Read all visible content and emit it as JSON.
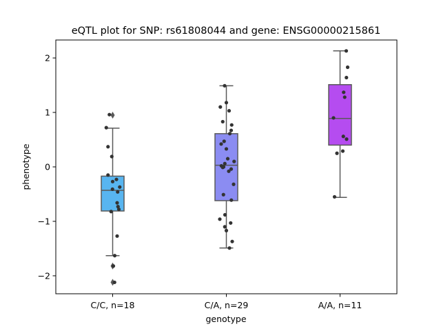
{
  "chart_data": {
    "type": "box",
    "title": "eQTL plot for SNP: rs61808044 and gene: ENSG00000215861",
    "xlabel": "genotype",
    "ylabel": "phenotype",
    "ylim": [
      -2.33,
      2.33
    ],
    "yticks": [
      -2,
      -1,
      0,
      1,
      2
    ],
    "ytick_labels": [
      "−2",
      "−1",
      "0",
      "1",
      "2"
    ],
    "grid": false,
    "categories": [
      "C/C, n=18",
      "C/A, n=29",
      "A/A, n=11"
    ],
    "box_colors": [
      "#58b5f0",
      "#8b8cf2",
      "#b54cf0"
    ],
    "point_color": "#333333",
    "boxes": [
      {
        "category": "C/C, n=18",
        "q1": -0.81,
        "median": -0.43,
        "q3": -0.17,
        "whisker_low": -1.63,
        "whisker_high": 0.71,
        "outliers": [
          0.95,
          -1.82,
          -2.12
        ]
      },
      {
        "category": "C/A, n=29",
        "q1": -0.62,
        "median": 0.03,
        "q3": 0.61,
        "whisker_low": -1.49,
        "whisker_high": 1.49,
        "outliers": []
      },
      {
        "category": "A/A, n=11",
        "q1": 0.4,
        "median": 0.89,
        "q3": 1.51,
        "whisker_low": -0.56,
        "whisker_high": 2.13,
        "outliers": []
      }
    ],
    "points": [
      [
        {
          "j": -0.19,
          "y": 0.96
        },
        {
          "j": -0.37,
          "y": 0.72
        },
        {
          "j": -0.27,
          "y": 0.37
        },
        {
          "j": -0.05,
          "y": 0.19
        },
        {
          "j": -0.27,
          "y": -0.15
        },
        {
          "j": 0.22,
          "y": -0.23
        },
        {
          "j": 0.0,
          "y": -0.27
        },
        {
          "j": 0.41,
          "y": -0.37
        },
        {
          "j": -0.01,
          "y": -0.41
        },
        {
          "j": 0.29,
          "y": -0.46
        },
        {
          "j": 0.26,
          "y": -0.66
        },
        {
          "j": 0.31,
          "y": -0.73
        },
        {
          "j": 0.36,
          "y": -0.78
        },
        {
          "j": -0.09,
          "y": -0.82
        },
        {
          "j": 0.26,
          "y": -1.27
        },
        {
          "j": 0.12,
          "y": -1.63
        },
        {
          "j": 0.04,
          "y": -1.82
        },
        {
          "j": 0.11,
          "y": -2.12
        }
      ],
      [
        {
          "j": -0.1,
          "y": 1.49
        },
        {
          "j": -0.35,
          "y": 1.1
        },
        {
          "j": 0.0,
          "y": 1.18
        },
        {
          "j": 0.16,
          "y": 1.03
        },
        {
          "j": -0.21,
          "y": 0.83
        },
        {
          "j": 0.31,
          "y": 0.77
        },
        {
          "j": 0.28,
          "y": 0.67
        },
        {
          "j": 0.2,
          "y": 0.61
        },
        {
          "j": -0.13,
          "y": 0.47
        },
        {
          "j": -0.3,
          "y": 0.42
        },
        {
          "j": 0.0,
          "y": 0.33
        },
        {
          "j": 0.08,
          "y": 0.15
        },
        {
          "j": 0.45,
          "y": 0.1
        },
        {
          "j": -0.09,
          "y": 0.06
        },
        {
          "j": -0.29,
          "y": 0.02
        },
        {
          "j": -0.16,
          "y": 0.0
        },
        {
          "j": -0.21,
          "y": -0.01
        },
        {
          "j": 0.28,
          "y": -0.04
        },
        {
          "j": 0.14,
          "y": -0.08
        },
        {
          "j": 0.42,
          "y": -0.32
        },
        {
          "j": -0.17,
          "y": -0.51
        },
        {
          "j": 0.29,
          "y": -0.61
        },
        {
          "j": -0.08,
          "y": -0.88
        },
        {
          "j": -0.38,
          "y": -0.96
        },
        {
          "j": 0.25,
          "y": -1.03
        },
        {
          "j": -0.09,
          "y": -1.1
        },
        {
          "j": 0.0,
          "y": -1.17
        },
        {
          "j": 0.34,
          "y": -1.37
        },
        {
          "j": 0.18,
          "y": -1.49
        }
      ],
      [
        {
          "j": 0.36,
          "y": 2.13
        },
        {
          "j": 0.44,
          "y": 1.83
        },
        {
          "j": 0.37,
          "y": 1.64
        },
        {
          "j": 0.21,
          "y": 1.37
        },
        {
          "j": 0.27,
          "y": 1.28
        },
        {
          "j": -0.38,
          "y": 0.9
        },
        {
          "j": 0.19,
          "y": 0.56
        },
        {
          "j": 0.38,
          "y": 0.51
        },
        {
          "j": 0.16,
          "y": 0.29
        },
        {
          "j": -0.18,
          "y": 0.25
        },
        {
          "j": -0.32,
          "y": -0.55
        }
      ]
    ]
  }
}
